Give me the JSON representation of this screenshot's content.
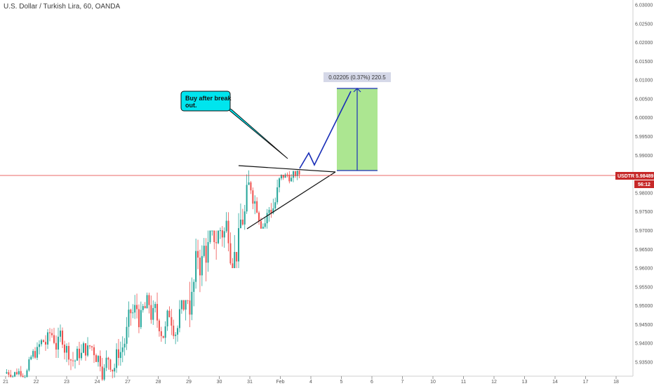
{
  "chart_data": {
    "type": "candlestick",
    "title": "U.S. Dollar / Turkish Lira, 60, OANDA",
    "symbol": "USDTRY",
    "current_price": "5.98489",
    "countdown": "56:12",
    "ylim": [
      5.9275,
      6.0325
    ],
    "y_ticks": [
      "6.03000",
      "6.02500",
      "6.02000",
      "6.01500",
      "6.01000",
      "6.00500",
      "6.00000",
      "5.99500",
      "5.99000",
      "5.98500",
      "5.98000",
      "5.97500",
      "5.97000",
      "5.96500",
      "5.96000",
      "5.95500",
      "5.95000",
      "5.94500",
      "5.94000",
      "5.93500"
    ],
    "x_ticks": [
      "21",
      "22",
      "23",
      "24",
      "27",
      "28",
      "29",
      "30",
      "31",
      "Feb",
      "4",
      "5",
      "6",
      "7",
      "10",
      "11",
      "12",
      "13",
      "14",
      "17",
      "18"
    ],
    "candles_summary": [
      {
        "session": "21",
        "low": 5.931,
        "high": 5.939
      },
      {
        "session": "22",
        "low": 5.9305,
        "high": 5.945
      },
      {
        "session": "24",
        "low": 5.93,
        "high": 5.947
      },
      {
        "session": "27",
        "low": 5.9345,
        "high": 5.9535
      },
      {
        "session": "28",
        "low": 5.935,
        "high": 5.9515
      },
      {
        "session": "29",
        "low": 5.94,
        "high": 5.97
      },
      {
        "session": "30",
        "low": 5.96,
        "high": 5.986
      },
      {
        "session": "31",
        "low": 5.9705,
        "high": 5.987
      },
      {
        "session": "Feb",
        "low": 5.979,
        "high": 5.986
      }
    ],
    "annotations": {
      "callout_text": [
        "Buy after break",
        "out."
      ],
      "measure_label": "0.02205 (0.37%) 220.5",
      "measure_from": 5.98596,
      "measure_to": 6.00802
    },
    "colors": {
      "up": "#26a69a",
      "down": "#ef5350",
      "price_line": "#e53935",
      "price_tag": "#c62828",
      "callout_fill": "#00e5ee",
      "target_box": "#9ee27e",
      "projection": "#1a2fb8",
      "measure_label_bg": "#d5d8e8"
    }
  }
}
